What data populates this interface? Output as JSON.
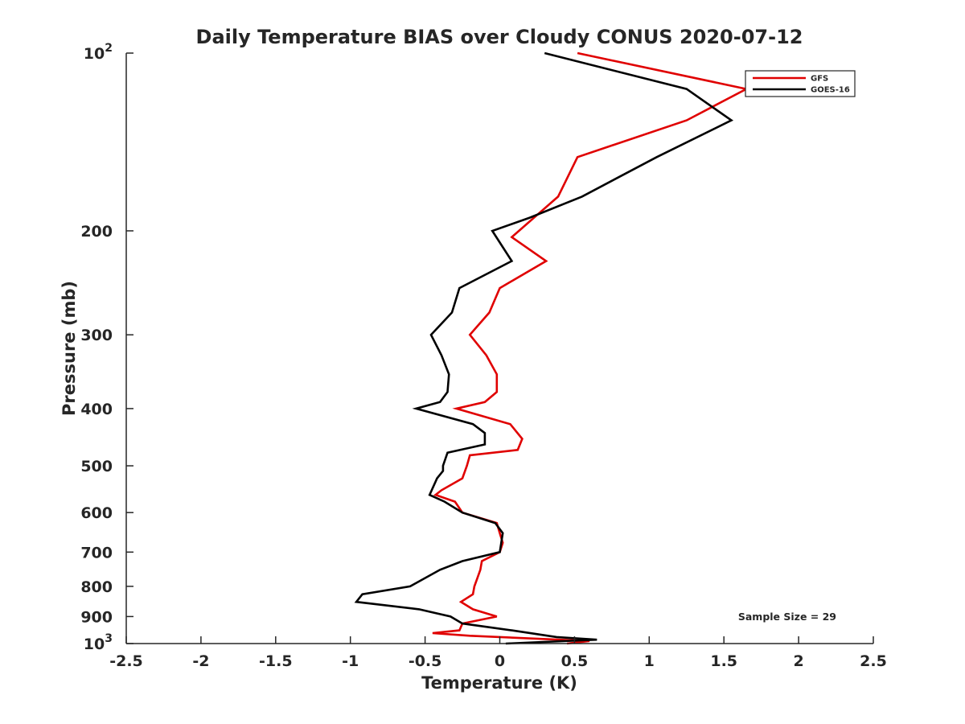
{
  "chart_data": {
    "type": "line",
    "title": "Daily Temperature BIAS over Cloudy CONUS 2020-07-12",
    "xlabel": "Temperature (K)",
    "ylabel": "Pressure (mb)",
    "xlim": [
      -2.5,
      2.5
    ],
    "ylim": [
      100,
      1000
    ],
    "y_scale": "log",
    "y_reversed": true,
    "grid": false,
    "x_ticks": [
      -2.5,
      -2,
      -1.5,
      -1,
      -0.5,
      0,
      0.5,
      1,
      1.5,
      2,
      2.5
    ],
    "x_tick_labels": [
      "-2.5",
      "-2",
      "-1.5",
      "-1",
      "-0.5",
      "0",
      "0.5",
      "1",
      "1.5",
      "2",
      "2.5"
    ],
    "y_ticks": [
      {
        "value": 100,
        "label": "10",
        "sup": "2"
      },
      {
        "value": 200,
        "label": "200",
        "sup": ""
      },
      {
        "value": 300,
        "label": "300",
        "sup": ""
      },
      {
        "value": 400,
        "label": "400",
        "sup": ""
      },
      {
        "value": 500,
        "label": "500",
        "sup": ""
      },
      {
        "value": 600,
        "label": "600",
        "sup": ""
      },
      {
        "value": 700,
        "label": "700",
        "sup": ""
      },
      {
        "value": 800,
        "label": "800",
        "sup": ""
      },
      {
        "value": 900,
        "label": "900",
        "sup": ""
      },
      {
        "value": 1000,
        "label": "10",
        "sup": "3"
      }
    ],
    "legend_position": "top-right",
    "annotation": "Sample Size = 29",
    "series": [
      {
        "name": "GFS",
        "color": "#e00000",
        "points": [
          [
            0.52,
            100
          ],
          [
            1.65,
            115
          ],
          [
            1.25,
            130
          ],
          [
            0.52,
            150
          ],
          [
            0.39,
            175
          ],
          [
            0.08,
            205
          ],
          [
            0.31,
            225
          ],
          [
            0.0,
            250
          ],
          [
            -0.07,
            275
          ],
          [
            -0.2,
            300
          ],
          [
            -0.09,
            325
          ],
          [
            -0.02,
            350
          ],
          [
            -0.02,
            375
          ],
          [
            -0.1,
            390
          ],
          [
            -0.29,
            400
          ],
          [
            0.07,
            425
          ],
          [
            0.15,
            450
          ],
          [
            0.12,
            470
          ],
          [
            -0.2,
            480
          ],
          [
            -0.22,
            500
          ],
          [
            -0.25,
            525
          ],
          [
            -0.39,
            550
          ],
          [
            -0.43,
            560
          ],
          [
            -0.3,
            575
          ],
          [
            -0.25,
            600
          ],
          [
            -0.02,
            625
          ],
          [
            0.0,
            650
          ],
          [
            0.02,
            675
          ],
          [
            0.0,
            700
          ],
          [
            -0.12,
            725
          ],
          [
            -0.13,
            750
          ],
          [
            -0.15,
            775
          ],
          [
            -0.17,
            800
          ],
          [
            -0.18,
            825
          ],
          [
            -0.26,
            850
          ],
          [
            -0.18,
            875
          ],
          [
            -0.02,
            900
          ],
          [
            -0.25,
            925
          ],
          [
            -0.27,
            950
          ],
          [
            -0.45,
            960
          ],
          [
            -0.2,
            970
          ],
          [
            0.6,
            990
          ],
          [
            0.45,
            1000
          ]
        ]
      },
      {
        "name": "GOES-16",
        "color": "#000000",
        "points": [
          [
            0.3,
            100
          ],
          [
            1.25,
            115
          ],
          [
            1.55,
            130
          ],
          [
            1.05,
            150
          ],
          [
            0.55,
            175
          ],
          [
            0.2,
            190
          ],
          [
            -0.05,
            200
          ],
          [
            0.08,
            225
          ],
          [
            -0.27,
            250
          ],
          [
            -0.32,
            275
          ],
          [
            -0.46,
            300
          ],
          [
            -0.39,
            325
          ],
          [
            -0.34,
            350
          ],
          [
            -0.35,
            375
          ],
          [
            -0.4,
            390
          ],
          [
            -0.56,
            400
          ],
          [
            -0.18,
            425
          ],
          [
            -0.1,
            440
          ],
          [
            -0.1,
            460
          ],
          [
            -0.35,
            475
          ],
          [
            -0.38,
            500
          ],
          [
            -0.38,
            510
          ],
          [
            -0.42,
            525
          ],
          [
            -0.47,
            560
          ],
          [
            -0.37,
            575
          ],
          [
            -0.25,
            600
          ],
          [
            -0.03,
            625
          ],
          [
            0.02,
            650
          ],
          [
            0.0,
            700
          ],
          [
            -0.25,
            725
          ],
          [
            -0.4,
            750
          ],
          [
            -0.6,
            800
          ],
          [
            -0.92,
            825
          ],
          [
            -0.96,
            850
          ],
          [
            -0.54,
            875
          ],
          [
            -0.33,
            900
          ],
          [
            -0.25,
            925
          ],
          [
            0.08,
            950
          ],
          [
            0.38,
            975
          ],
          [
            0.65,
            985
          ],
          [
            0.04,
            1000
          ]
        ]
      }
    ]
  }
}
